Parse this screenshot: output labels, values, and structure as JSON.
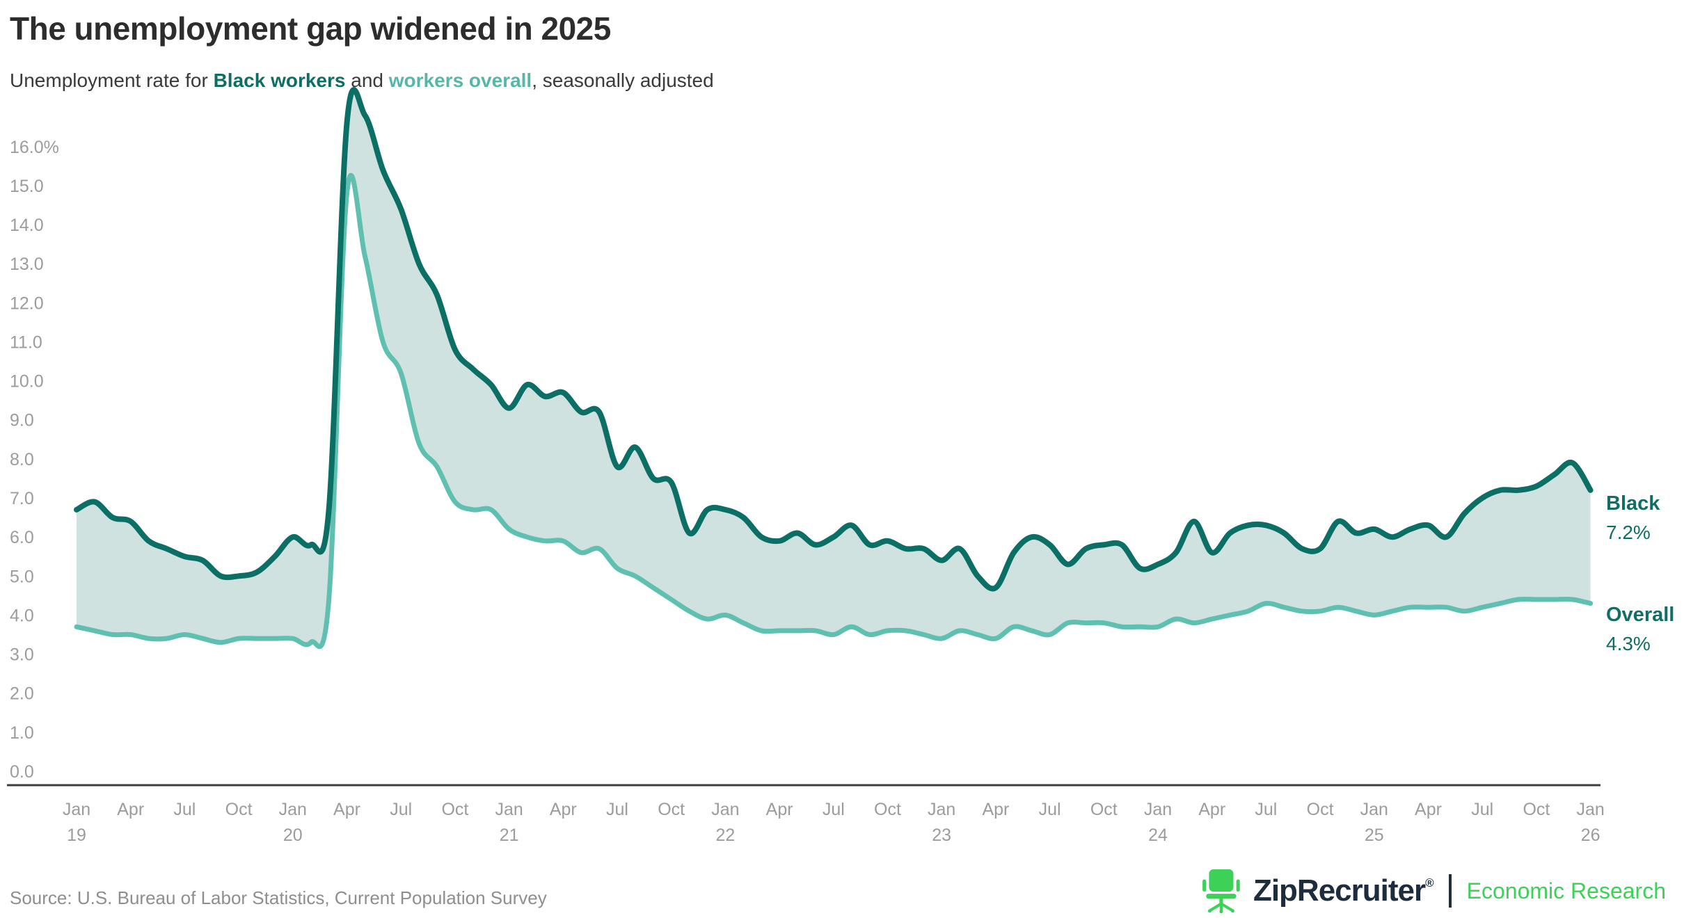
{
  "chart_data": {
    "type": "area",
    "title": "The unemployment gap widened in 2025",
    "subtitle_parts": {
      "prefix": "Unemployment rate for ",
      "black": "Black workers",
      "middle": " and ",
      "overall": "workers overall",
      "suffix": ", seasonally adjusted"
    },
    "frequency": "monthly",
    "x_start": "Jan 2019",
    "x_end": "Jan 2026",
    "ylim": [
      0,
      16
    ],
    "grid": false,
    "legend_position": "right-end-of-lines",
    "y_tick_labels": [
      "16.0%",
      "15.0",
      "14.0",
      "13.0",
      "12.0",
      "11.0",
      "10.0",
      "9.0",
      "8.0",
      "7.0",
      "6.0",
      "5.0",
      "4.0",
      "3.0",
      "2.0",
      "1.0",
      "0.0"
    ],
    "y_tick_values": [
      16,
      15,
      14,
      13,
      12,
      11,
      10,
      9,
      8,
      7,
      6,
      5,
      4,
      3,
      2,
      1,
      0
    ],
    "x_ticks": [
      {
        "month": "Jan",
        "year": "19"
      },
      {
        "month": "Apr"
      },
      {
        "month": "Jul"
      },
      {
        "month": "Oct"
      },
      {
        "month": "Jan",
        "year": "20"
      },
      {
        "month": "Apr"
      },
      {
        "month": "Jul"
      },
      {
        "month": "Oct"
      },
      {
        "month": "Jan",
        "year": "21"
      },
      {
        "month": "Apr"
      },
      {
        "month": "Jul"
      },
      {
        "month": "Oct"
      },
      {
        "month": "Jan",
        "year": "22"
      },
      {
        "month": "Apr"
      },
      {
        "month": "Jul"
      },
      {
        "month": "Oct"
      },
      {
        "month": "Jan",
        "year": "23"
      },
      {
        "month": "Apr"
      },
      {
        "month": "Jul"
      },
      {
        "month": "Oct"
      },
      {
        "month": "Jan",
        "year": "24"
      },
      {
        "month": "Apr"
      },
      {
        "month": "Jul"
      },
      {
        "month": "Oct"
      },
      {
        "month": "Jan",
        "year": "25"
      },
      {
        "month": "Apr"
      },
      {
        "month": "Jul"
      },
      {
        "month": "Oct"
      },
      {
        "month": "Jan",
        "year": "26"
      }
    ],
    "series": [
      {
        "name": "Black",
        "color": "#0b6f66",
        "end_label": "Black",
        "end_value": "7.2%",
        "values": [
          6.7,
          6.9,
          6.5,
          6.4,
          5.9,
          5.7,
          5.5,
          5.4,
          5.0,
          5.0,
          5.1,
          5.5,
          6.0,
          5.8,
          6.7,
          16.6,
          16.8,
          15.4,
          14.4,
          13.0,
          12.2,
          10.8,
          10.3,
          9.9,
          9.3,
          9.9,
          9.6,
          9.7,
          9.2,
          9.2,
          7.8,
          8.3,
          7.5,
          7.4,
          6.1,
          6.7,
          6.7,
          6.5,
          6.0,
          5.9,
          6.1,
          5.8,
          6.0,
          6.3,
          5.8,
          5.9,
          5.7,
          5.7,
          5.4,
          5.7,
          5.0,
          4.7,
          5.6,
          6.0,
          5.8,
          5.3,
          5.7,
          5.8,
          5.8,
          5.2,
          5.3,
          5.6,
          6.4,
          5.6,
          6.1,
          6.3,
          6.3,
          6.1,
          5.7,
          5.7,
          6.4,
          6.1,
          6.2,
          6.0,
          6.2,
          6.3,
          6.0,
          6.6,
          7.0,
          7.2,
          7.2,
          7.3,
          7.6,
          7.9,
          7.2
        ]
      },
      {
        "name": "Overall",
        "color": "#5fc0b1",
        "end_label": "Overall",
        "end_value": "4.3%",
        "values": [
          3.7,
          3.6,
          3.5,
          3.5,
          3.4,
          3.4,
          3.5,
          3.4,
          3.3,
          3.4,
          3.4,
          3.4,
          3.4,
          3.3,
          4.4,
          14.8,
          13.2,
          11.0,
          10.2,
          8.4,
          7.8,
          6.9,
          6.7,
          6.7,
          6.2,
          6.0,
          5.9,
          5.9,
          5.6,
          5.7,
          5.2,
          5.0,
          4.7,
          4.4,
          4.1,
          3.9,
          4.0,
          3.8,
          3.6,
          3.6,
          3.6,
          3.6,
          3.5,
          3.7,
          3.5,
          3.6,
          3.6,
          3.5,
          3.4,
          3.6,
          3.5,
          3.4,
          3.7,
          3.6,
          3.5,
          3.8,
          3.8,
          3.8,
          3.7,
          3.7,
          3.7,
          3.9,
          3.8,
          3.9,
          4.0,
          4.1,
          4.3,
          4.2,
          4.1,
          4.1,
          4.2,
          4.1,
          4.0,
          4.1,
          4.2,
          4.2,
          4.2,
          4.1,
          4.2,
          4.3,
          4.4,
          4.4,
          4.4,
          4.4,
          4.3
        ]
      }
    ],
    "fill_between_color": "#cfe2e0",
    "source": "Source: U.S. Bureau of Labor Statistics, Current Population Survey"
  },
  "text_colors": {
    "black_accent": "#0e6e64",
    "overall_accent": "#56b7a9",
    "end_label": "#106e64",
    "logo_green": "#3ed158",
    "logo_navy": "#1e2d3e"
  },
  "branding": {
    "logo_text": "ZipRecruiter",
    "registered_mark": "®",
    "tagline": "Economic Research"
  }
}
